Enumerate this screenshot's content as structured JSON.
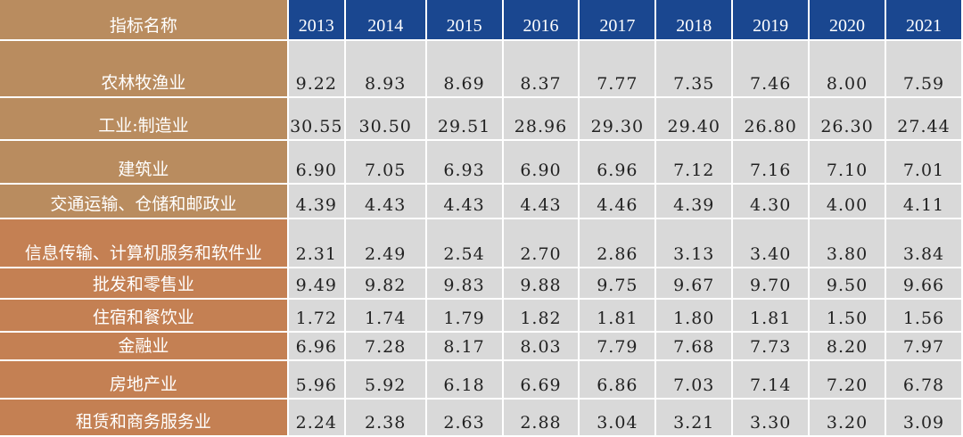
{
  "header": {
    "label": "指标名称",
    "years": [
      "2013",
      "2014",
      "2015",
      "2016",
      "2017",
      "2018",
      "2019",
      "2020",
      "2021"
    ]
  },
  "colors": {
    "header_label_bg": "#b98c5f",
    "header_year_bg": "#1a4790",
    "label_bg": "#b98c5f",
    "label_bg_alt": "#c48053",
    "cell_bg": "#d9d9d9"
  },
  "rows": [
    {
      "name": "农林牧渔业",
      "values": [
        "9.22",
        "8.93",
        "8.69",
        "8.37",
        "7.77",
        "7.35",
        "7.46",
        "8.00",
        "7.59"
      ]
    },
    {
      "name": "工业:制造业",
      "values": [
        "30.55",
        "30.50",
        "29.51",
        "28.96",
        "29.30",
        "29.40",
        "26.80",
        "26.30",
        "27.44"
      ]
    },
    {
      "name": "建筑业",
      "values": [
        "6.90",
        "7.05",
        "6.93",
        "6.90",
        "6.96",
        "7.12",
        "7.16",
        "7.10",
        "7.01"
      ]
    },
    {
      "name": "交通运输、仓储和邮政业",
      "values": [
        "4.39",
        "4.43",
        "4.43",
        "4.43",
        "4.46",
        "4.39",
        "4.30",
        "4.00",
        "4.11"
      ]
    },
    {
      "name": "信息传输、计算机服务和软件业",
      "values": [
        "2.31",
        "2.49",
        "2.54",
        "2.70",
        "2.86",
        "3.13",
        "3.40",
        "3.80",
        "3.84"
      ]
    },
    {
      "name": "批发和零售业",
      "values": [
        "9.49",
        "9.82",
        "9.83",
        "9.88",
        "9.75",
        "9.67",
        "9.70",
        "9.50",
        "9.66"
      ]
    },
    {
      "name": "住宿和餐饮业",
      "values": [
        "1.72",
        "1.74",
        "1.79",
        "1.82",
        "1.81",
        "1.80",
        "1.81",
        "1.50",
        "1.56"
      ]
    },
    {
      "name": "金融业",
      "values": [
        "6.96",
        "7.28",
        "8.17",
        "8.03",
        "7.79",
        "7.68",
        "7.73",
        "8.20",
        "7.97"
      ]
    },
    {
      "name": "房地产业",
      "values": [
        "5.96",
        "5.92",
        "6.18",
        "6.69",
        "6.86",
        "7.03",
        "7.14",
        "7.20",
        "6.78"
      ]
    },
    {
      "name": "租赁和商务服务业",
      "values": [
        "2.24",
        "2.38",
        "2.63",
        "2.88",
        "3.04",
        "3.21",
        "3.30",
        "3.20",
        "3.09"
      ]
    }
  ]
}
